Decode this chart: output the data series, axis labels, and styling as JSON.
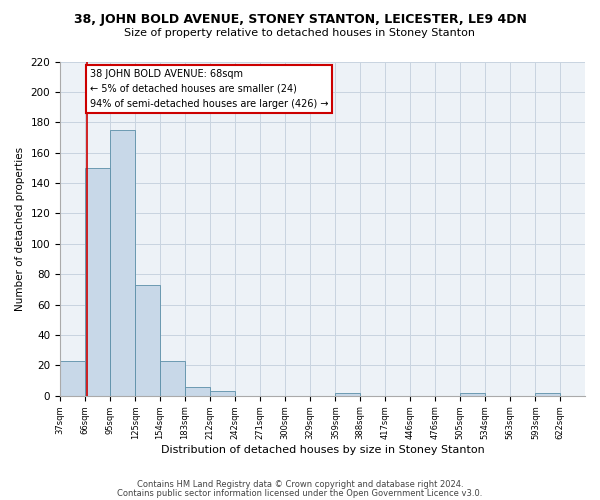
{
  "title1": "38, JOHN BOLD AVENUE, STONEY STANTON, LEICESTER, LE9 4DN",
  "title2": "Size of property relative to detached houses in Stoney Stanton",
  "xlabel": "Distribution of detached houses by size in Stoney Stanton",
  "ylabel": "Number of detached properties",
  "bar_left_edges": [
    37,
    66,
    95,
    125,
    154,
    183,
    212,
    242,
    271,
    300,
    329,
    359,
    388,
    417,
    446,
    476,
    505,
    534,
    563,
    593
  ],
  "bar_widths": [
    29,
    29,
    30,
    29,
    29,
    29,
    30,
    29,
    29,
    29,
    30,
    29,
    29,
    29,
    30,
    29,
    29,
    29,
    30,
    29
  ],
  "bar_heights": [
    23,
    150,
    175,
    73,
    23,
    6,
    3,
    0,
    0,
    0,
    0,
    2,
    0,
    0,
    0,
    0,
    2,
    0,
    0,
    2
  ],
  "bar_color": "#c8d8e8",
  "bar_edge_color": "#5b8fa8",
  "grid_color": "#c8d4e0",
  "bg_color": "#edf2f7",
  "red_line_x": 68,
  "annotation_text": "38 JOHN BOLD AVENUE: 68sqm\n← 5% of detached houses are smaller (24)\n94% of semi-detached houses are larger (426) →",
  "annotation_box_color": "#ffffff",
  "annotation_border_color": "#cc0000",
  "tick_labels": [
    "37sqm",
    "66sqm",
    "95sqm",
    "125sqm",
    "154sqm",
    "183sqm",
    "212sqm",
    "242sqm",
    "271sqm",
    "300sqm",
    "329sqm",
    "359sqm",
    "388sqm",
    "417sqm",
    "446sqm",
    "476sqm",
    "505sqm",
    "534sqm",
    "563sqm",
    "593sqm",
    "622sqm"
  ],
  "tick_positions": [
    37,
    66,
    95,
    125,
    154,
    183,
    212,
    242,
    271,
    300,
    329,
    359,
    388,
    417,
    446,
    476,
    505,
    534,
    563,
    593,
    622
  ],
  "ylim": [
    0,
    220
  ],
  "yticks": [
    0,
    20,
    40,
    60,
    80,
    100,
    120,
    140,
    160,
    180,
    200,
    220
  ],
  "footer1": "Contains HM Land Registry data © Crown copyright and database right 2024.",
  "footer2": "Contains public sector information licensed under the Open Government Licence v3.0."
}
